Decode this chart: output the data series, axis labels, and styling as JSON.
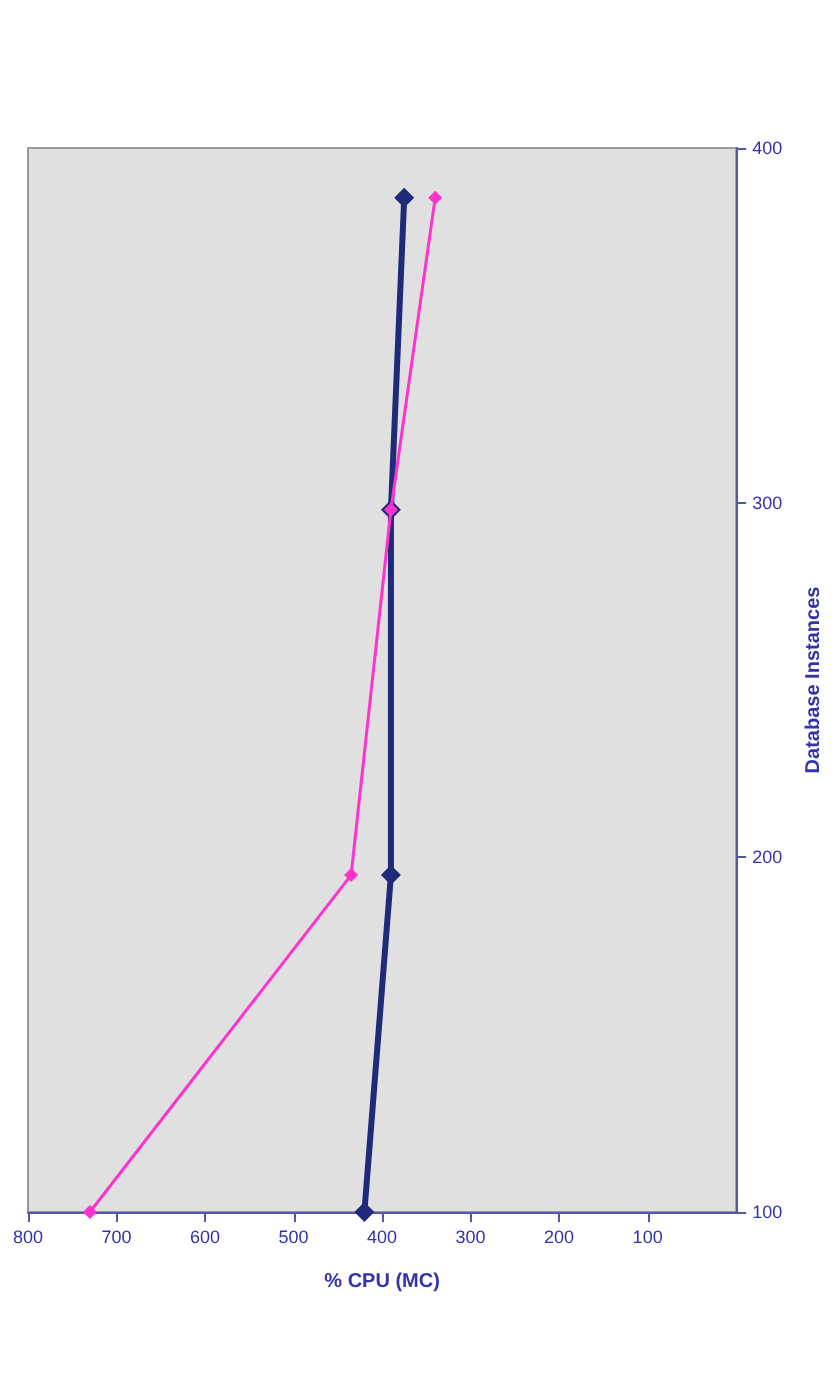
{
  "chart_data": {
    "type": "line",
    "xlabel": "% CPU (MC)",
    "ylabel": "Database Instances",
    "series": [
      {
        "color": "#1f2a7a",
        "x": [
          420,
          390,
          390,
          375
        ],
        "values": [
          100,
          195,
          298,
          386
        ]
      },
      {
        "color": "#ff33cc",
        "x": [
          730,
          435,
          390,
          340
        ],
        "values": [
          100,
          195,
          298,
          386
        ]
      }
    ],
    "xlim": [
      800,
      0
    ],
    "xticks": [
      800,
      700,
      600,
      500,
      400,
      300,
      200,
      100
    ],
    "ylim": [
      100,
      400
    ],
    "yticks": [
      100,
      200,
      300,
      400
    ],
    "grid": false,
    "marker": "diamond"
  }
}
